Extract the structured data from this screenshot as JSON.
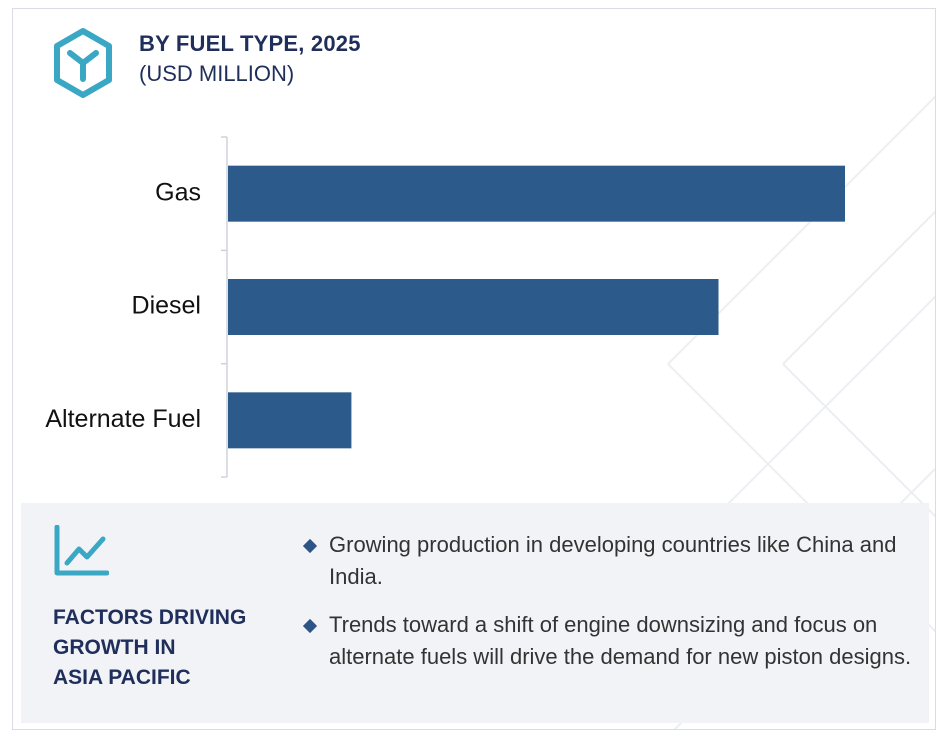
{
  "header": {
    "title": "BY FUEL TYPE, 2025",
    "subtitle": "(USD MILLION)",
    "logo_icon": "hexagon-y-logo-icon"
  },
  "colors": {
    "bar": "#2c5a8a",
    "accent": "#3aa8c4",
    "heading": "#1f2e5a",
    "panel_bg": "#f2f3f7"
  },
  "chart_data": {
    "type": "bar",
    "orientation": "horizontal",
    "categories": [
      "Gas",
      "Diesel",
      "Alternate Fuel"
    ],
    "values": [
      100,
      79.5,
      20
    ],
    "title": "BY FUEL TYPE, 2025",
    "subtitle": "(USD MILLION)",
    "xlabel": "",
    "ylabel": "",
    "xlim": [
      0,
      100
    ],
    "grid": false,
    "legend": "none"
  },
  "factors": {
    "icon": "trend-line-chart-icon",
    "heading_lines": [
      "FACTORS DRIVING",
      "GROWTH IN",
      "ASIA PACIFIC"
    ],
    "bullets": [
      "Growing production in developing countries like China and India.",
      "Trends toward a shift of engine downsizing and focus on alternate fuels will drive the demand for new piston designs."
    ]
  }
}
